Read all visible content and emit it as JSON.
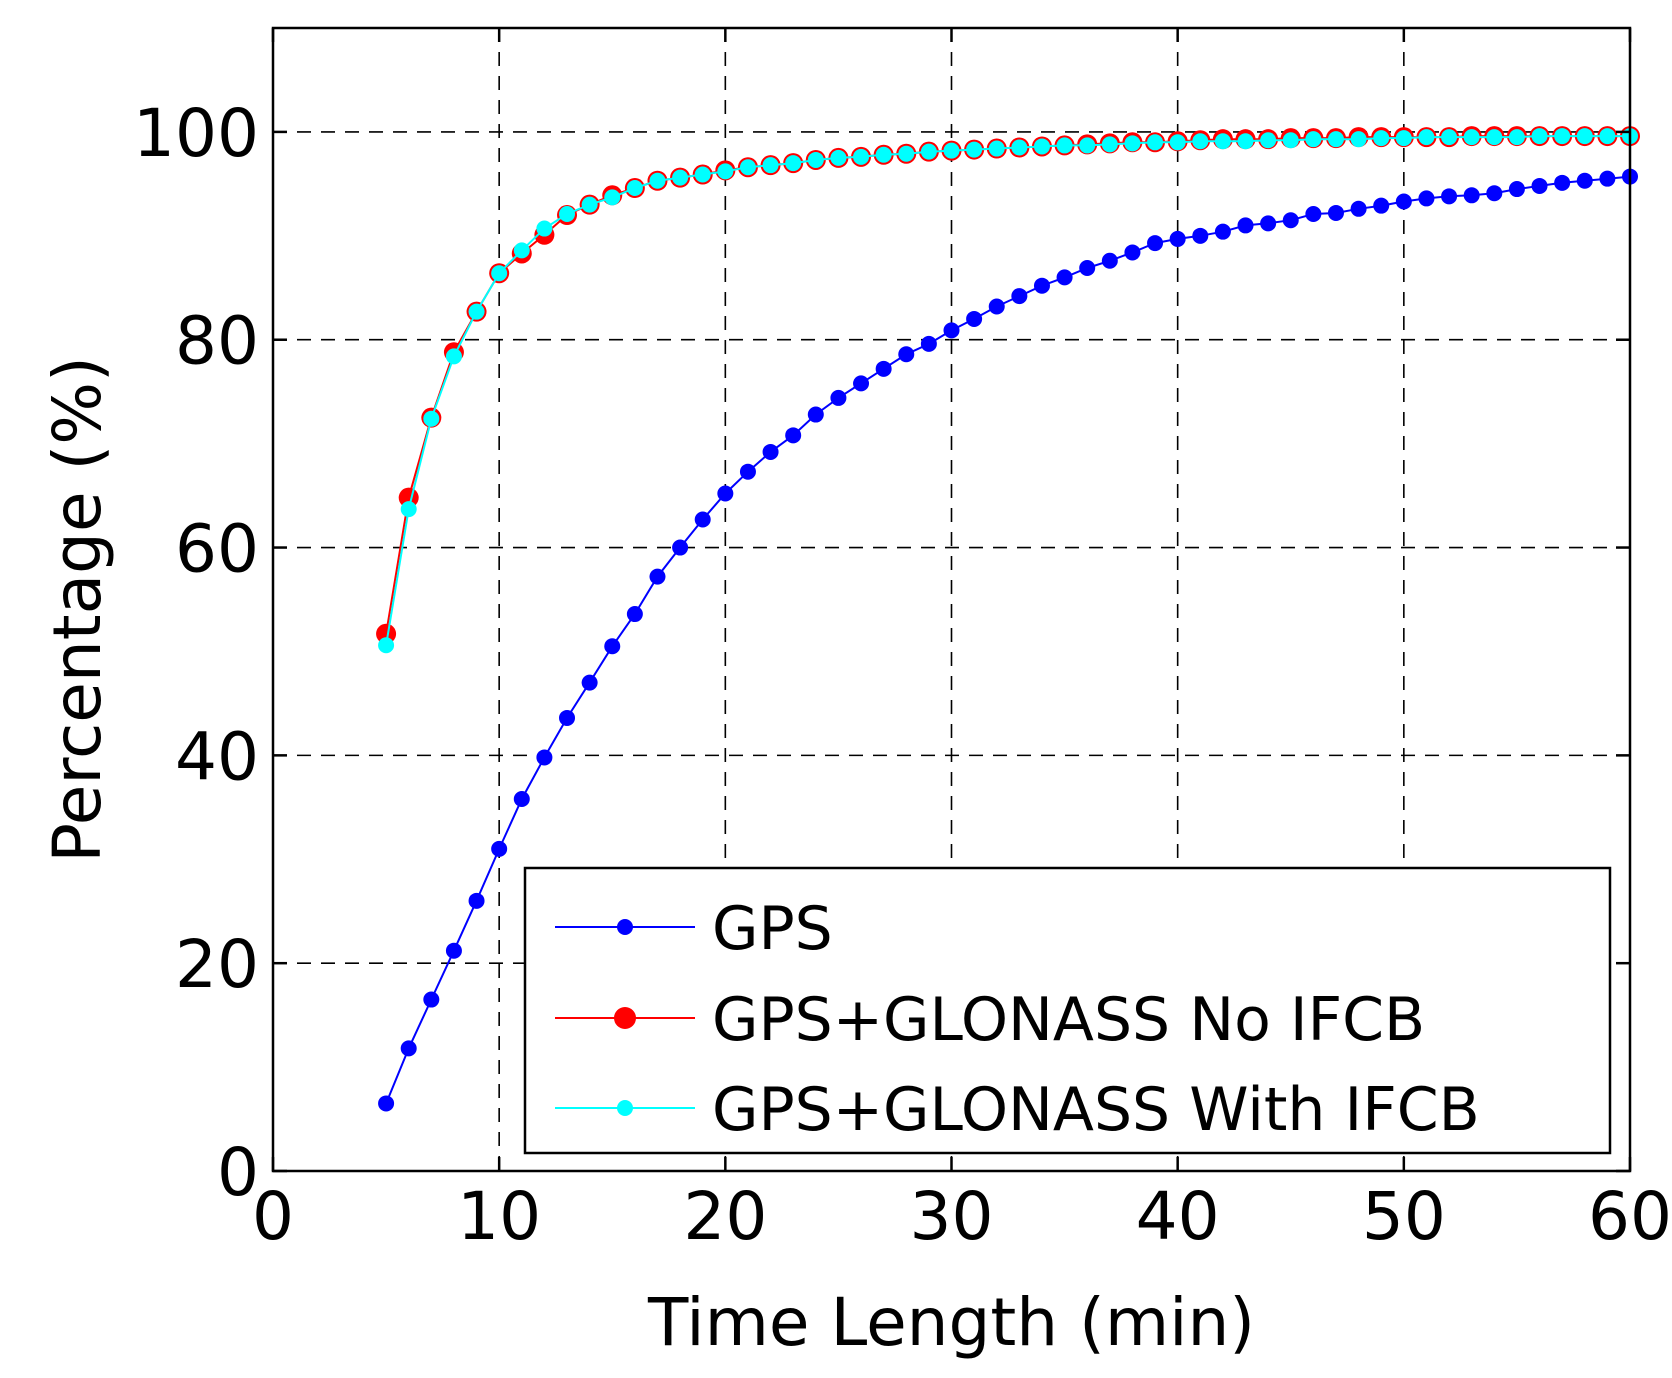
{
  "chart_data": {
    "type": "line",
    "title": "",
    "xlabel": "Time Length (min)",
    "ylabel": "Percentage (%)",
    "xlim": [
      0,
      60
    ],
    "ylim": [
      0,
      110
    ],
    "xticks": [
      0,
      10,
      20,
      30,
      40,
      50,
      60
    ],
    "yticks": [
      0,
      20,
      40,
      60,
      80,
      100
    ],
    "xtick_labels": [
      "0",
      "10",
      "20",
      "30",
      "40",
      "50",
      "60"
    ],
    "ytick_labels": [
      "0",
      "20",
      "40",
      "60",
      "80",
      "100"
    ],
    "grid": true,
    "legend_position": "bottom-right",
    "x": [
      5,
      6,
      7,
      8,
      9,
      10,
      11,
      12,
      13,
      14,
      15,
      16,
      17,
      18,
      19,
      20,
      21,
      22,
      23,
      24,
      25,
      26,
      27,
      28,
      29,
      30,
      31,
      32,
      33,
      34,
      35,
      36,
      37,
      38,
      39,
      40,
      41,
      42,
      43,
      44,
      45,
      46,
      47,
      48,
      49,
      50,
      51,
      52,
      53,
      54,
      55,
      56,
      57,
      58,
      59,
      60
    ],
    "series": [
      {
        "name": "GPS",
        "color": "#0000ff",
        "marker_size": "small",
        "values": [
          6.5,
          11.8,
          16.5,
          21.2,
          26.0,
          31.0,
          35.8,
          39.8,
          43.6,
          47.0,
          50.5,
          53.6,
          57.2,
          60.0,
          62.7,
          65.2,
          67.3,
          69.2,
          70.8,
          72.8,
          74.4,
          75.8,
          77.2,
          78.6,
          79.6,
          80.9,
          82.0,
          83.2,
          84.2,
          85.2,
          86.0,
          86.9,
          87.6,
          88.4,
          89.3,
          89.7,
          90.0,
          90.4,
          91.0,
          91.2,
          91.5,
          92.1,
          92.2,
          92.6,
          92.9,
          93.3,
          93.6,
          93.8,
          93.9,
          94.1,
          94.5,
          94.8,
          95.1,
          95.3,
          95.5,
          95.7
        ]
      },
      {
        "name": "GPS+GLONASS No IFCB",
        "color": "#ff0000",
        "marker_size": "large",
        "values": [
          51.7,
          64.8,
          72.5,
          78.8,
          82.7,
          86.4,
          88.3,
          90.1,
          92.0,
          93.0,
          93.9,
          94.6,
          95.3,
          95.6,
          95.9,
          96.3,
          96.6,
          96.8,
          97.0,
          97.3,
          97.5,
          97.6,
          97.8,
          97.9,
          98.1,
          98.2,
          98.3,
          98.4,
          98.5,
          98.6,
          98.7,
          98.8,
          98.9,
          99.0,
          99.0,
          99.1,
          99.2,
          99.3,
          99.3,
          99.3,
          99.4,
          99.4,
          99.4,
          99.5,
          99.5,
          99.5,
          99.5,
          99.5,
          99.6,
          99.6,
          99.6,
          99.6,
          99.6,
          99.6,
          99.6,
          99.6
        ]
      },
      {
        "name": "GPS+GLONASS With IFCB",
        "color": "#00ffff",
        "marker_size": "small",
        "values": [
          50.6,
          63.7,
          72.4,
          78.4,
          82.7,
          86.4,
          88.6,
          90.7,
          92.1,
          93.0,
          93.7,
          94.6,
          95.3,
          95.6,
          95.9,
          96.2,
          96.6,
          96.8,
          97.0,
          97.3,
          97.5,
          97.6,
          97.8,
          97.9,
          98.1,
          98.2,
          98.3,
          98.4,
          98.5,
          98.6,
          98.7,
          98.7,
          98.8,
          98.9,
          99.0,
          99.0,
          99.1,
          99.1,
          99.1,
          99.2,
          99.2,
          99.3,
          99.3,
          99.3,
          99.4,
          99.4,
          99.5,
          99.5,
          99.5,
          99.5,
          99.5,
          99.6,
          99.6,
          99.6,
          99.6,
          99.6
        ]
      }
    ]
  }
}
